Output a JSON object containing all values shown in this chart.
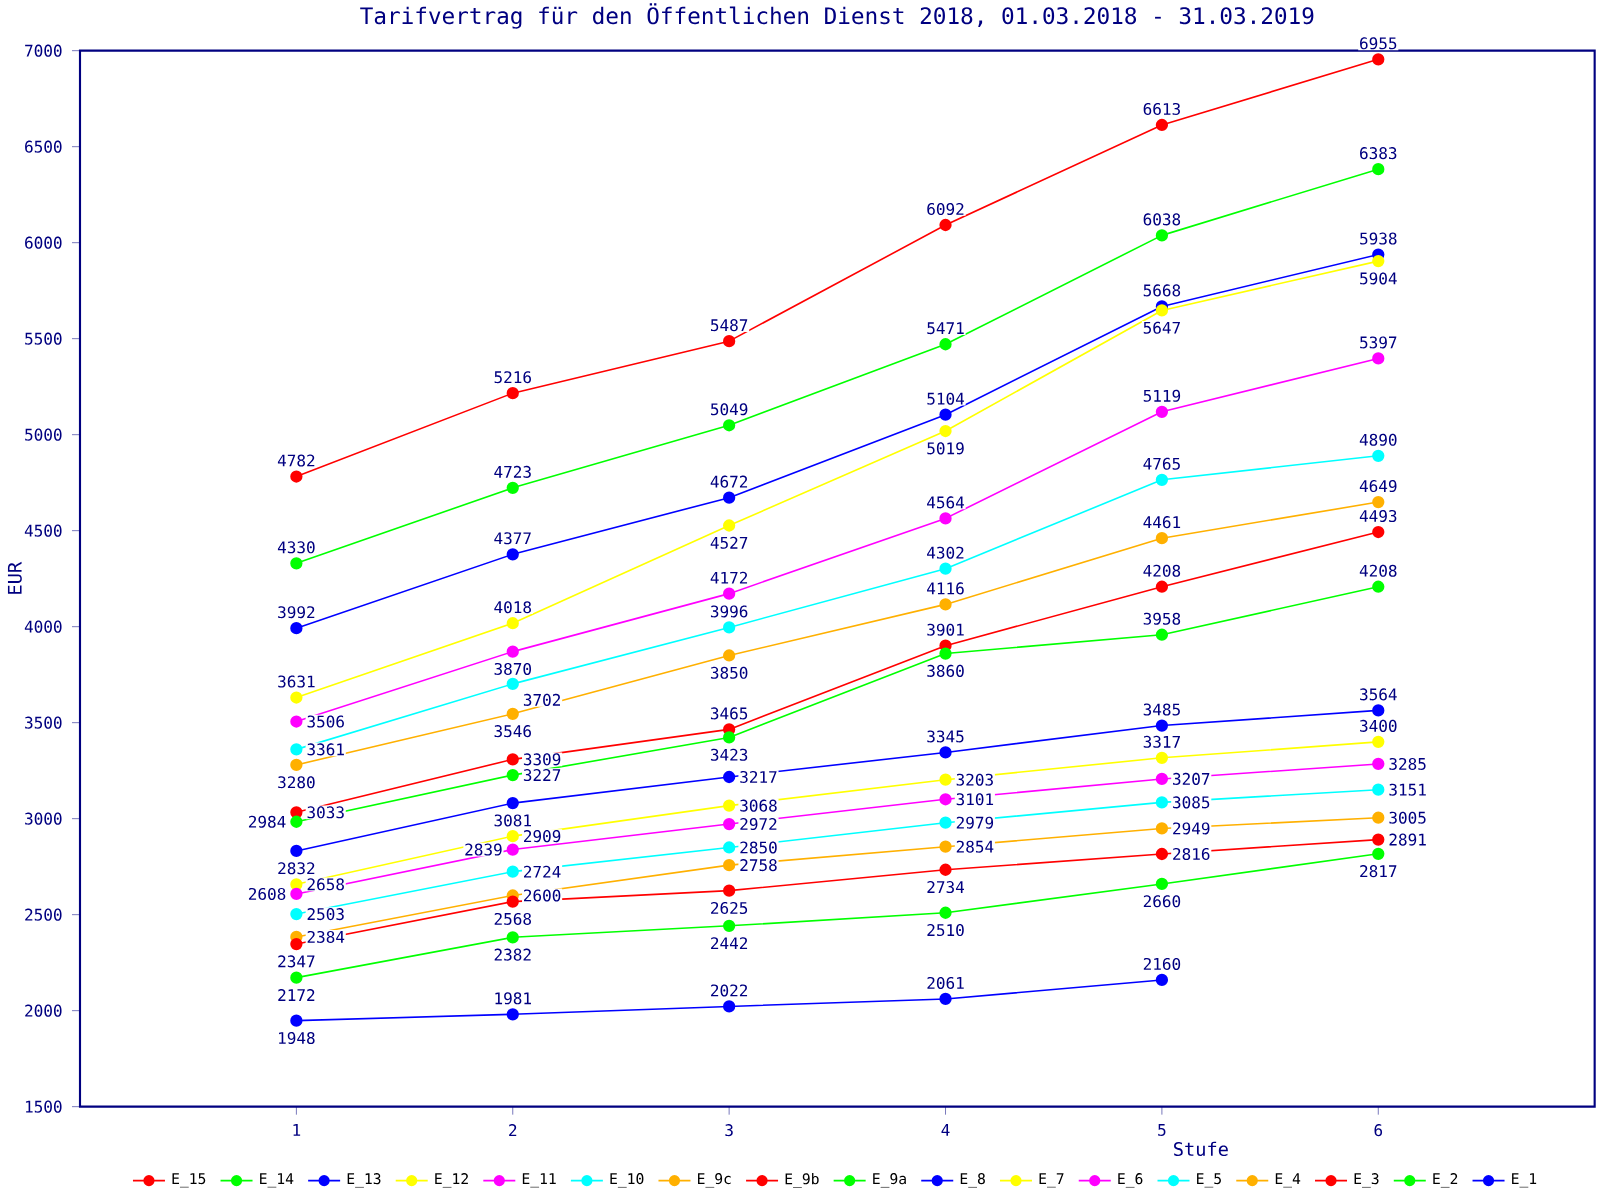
{
  "chart_data": {
    "type": "line",
    "title": "Tarifvertrag für den Öffentlichen Dienst 2018, 01.03.2018 - 31.03.2019",
    "xlabel": "Stufe",
    "ylabel": "EUR",
    "x": [
      1,
      2,
      3,
      4,
      5,
      6
    ],
    "xlim": [
      0,
      7
    ],
    "xticks": [
      1,
      2,
      3,
      4,
      5,
      6
    ],
    "ylim": [
      1500,
      7000
    ],
    "yticks": [
      1500,
      2000,
      2500,
      3000,
      3500,
      4000,
      4500,
      5000,
      5500,
      6000,
      6500,
      7000
    ],
    "marker": "circle",
    "line_style": "solid",
    "legend": "bottom",
    "data_labels": true,
    "series": [
      {
        "name": "E_15",
        "color": "#ff0000",
        "values": [
          4782,
          5216,
          5487,
          6092,
          6613,
          6955
        ]
      },
      {
        "name": "E_14",
        "color": "#00ff00",
        "values": [
          4330,
          4723,
          5049,
          5471,
          6038,
          6383
        ]
      },
      {
        "name": "E_13",
        "color": "#0000ff",
        "values": [
          3992,
          4377,
          4672,
          5104,
          5668,
          5938
        ]
      },
      {
        "name": "E_12",
        "color": "#ffff00",
        "values": [
          3631,
          4018,
          4527,
          5019,
          5647,
          5904
        ]
      },
      {
        "name": "E_11",
        "color": "#ff00ff",
        "values": [
          3506,
          3870,
          4172,
          4564,
          5119,
          5397
        ]
      },
      {
        "name": "E_10",
        "color": "#00ffff",
        "values": [
          3361,
          3702,
          3996,
          4302,
          4765,
          4890
        ]
      },
      {
        "name": "E_9c",
        "color": "#ffb000",
        "values": [
          3280,
          3546,
          3850,
          4116,
          4461,
          4649
        ]
      },
      {
        "name": "E_9b",
        "color": "#ff0000",
        "values": [
          3033,
          3309,
          3465,
          3901,
          4208,
          4493
        ]
      },
      {
        "name": "E_9a",
        "color": "#00ff00",
        "values": [
          2984,
          3227,
          3423,
          3860,
          3958,
          4208
        ]
      },
      {
        "name": "E_8",
        "color": "#0000ff",
        "values": [
          2832,
          3081,
          3217,
          3345,
          3485,
          3564
        ]
      },
      {
        "name": "E_7",
        "color": "#ffff00",
        "values": [
          2658,
          2909,
          3068,
          3203,
          3317,
          3400
        ]
      },
      {
        "name": "E_6",
        "color": "#ff00ff",
        "values": [
          2608,
          2839,
          2972,
          3101,
          3207,
          3285
        ]
      },
      {
        "name": "E_5",
        "color": "#00ffff",
        "values": [
          2503,
          2724,
          2850,
          2979,
          3085,
          3151
        ]
      },
      {
        "name": "E_4",
        "color": "#ffb000",
        "values": [
          2384,
          2600,
          2758,
          2854,
          2949,
          3005
        ]
      },
      {
        "name": "E_3",
        "color": "#ff0000",
        "values": [
          2347,
          2568,
          2625,
          2734,
          2816,
          2891
        ]
      },
      {
        "name": "E_2",
        "color": "#00ff00",
        "values": [
          2172,
          2382,
          2442,
          2510,
          2660,
          2817
        ]
      },
      {
        "name": "E_1",
        "color": "#0000ff",
        "values": [
          1948,
          1981,
          2022,
          2061,
          2160,
          null
        ]
      }
    ]
  }
}
